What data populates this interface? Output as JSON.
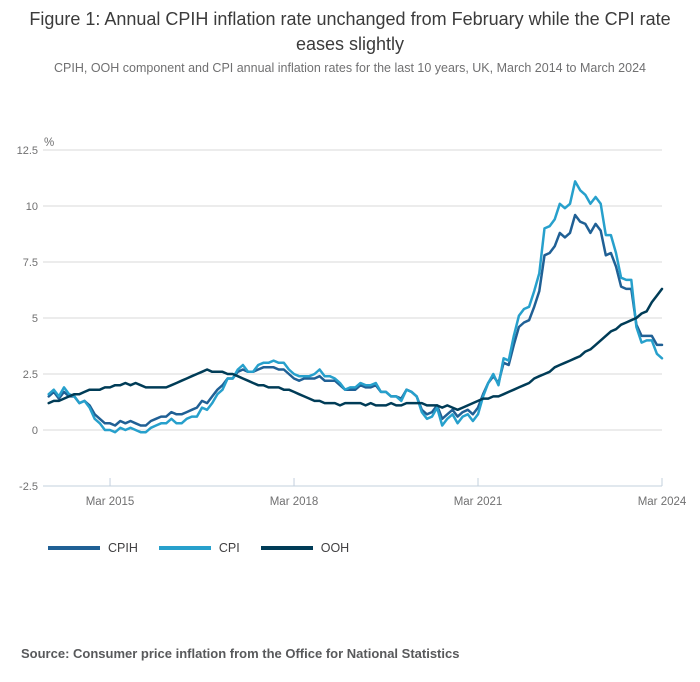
{
  "figure": {
    "title": "Figure 1: Annual CPIH inflation rate unchanged from February while the CPI rate eases slightly",
    "subtitle": "CPIH, OOH component and CPI annual inflation rates for the last 10 years, UK, March 2014 to March 2024",
    "source": "Source: Consumer price inflation from the Office for National Statistics"
  },
  "chart_data": {
    "type": "line",
    "title": "Figure 1: Annual CPIH inflation rate unchanged from February while the CPI rate eases slightly",
    "subtitle": "CPIH, OOH component and CPI annual inflation rates for the last 10 years, UK, March 2014 to March 2024",
    "unit_label": "%",
    "x_start": "Mar 2014",
    "x_end": "Mar 2024",
    "x_frequency": "monthly",
    "ylim": [
      -2.5,
      12.5
    ],
    "y_ticks": [
      12.5,
      10,
      7.5,
      5,
      2.5,
      0,
      -2.5
    ],
    "x_ticks": [
      {
        "index": 12,
        "label": "Mar 2015"
      },
      {
        "index": 48,
        "label": "Mar 2018"
      },
      {
        "index": 84,
        "label": "Mar 2021"
      },
      {
        "index": 120,
        "label": "Mar 2024"
      }
    ],
    "grid_on": true,
    "grid_color": "#d9d9d9",
    "axis_color": "#c3d0de",
    "tick_label_color": "#707071",
    "legend_position": "bottom-left",
    "series": [
      {
        "name": "CPIH",
        "color": "#206095",
        "values": [
          1.5,
          1.7,
          1.4,
          1.7,
          1.5,
          1.5,
          1.2,
          1.3,
          1.1,
          0.7,
          0.5,
          0.3,
          0.3,
          0.2,
          0.4,
          0.3,
          0.4,
          0.3,
          0.2,
          0.2,
          0.4,
          0.5,
          0.6,
          0.6,
          0.8,
          0.7,
          0.7,
          0.8,
          0.9,
          1.0,
          1.3,
          1.2,
          1.5,
          1.8,
          2.0,
          2.3,
          2.3,
          2.6,
          2.7,
          2.6,
          2.6,
          2.7,
          2.8,
          2.8,
          2.8,
          2.7,
          2.7,
          2.5,
          2.3,
          2.2,
          2.3,
          2.3,
          2.3,
          2.4,
          2.2,
          2.2,
          2.2,
          2.0,
          1.8,
          1.8,
          1.8,
          2.0,
          1.9,
          1.9,
          2.0,
          1.7,
          1.7,
          1.5,
          1.5,
          1.4,
          1.8,
          1.7,
          1.5,
          0.9,
          0.7,
          0.8,
          1.1,
          0.5,
          0.7,
          0.9,
          0.6,
          0.8,
          0.9,
          0.7,
          1.0,
          1.6,
          2.1,
          2.4,
          2.1,
          3.0,
          2.9,
          3.8,
          4.6,
          4.8,
          4.9,
          5.5,
          6.2,
          7.8,
          7.9,
          8.2,
          8.8,
          8.6,
          8.8,
          9.6,
          9.3,
          9.2,
          8.8,
          9.2,
          8.9,
          7.8,
          7.9,
          7.3,
          6.4,
          6.3,
          6.3,
          4.7,
          4.2,
          4.2,
          4.2,
          3.8,
          3.8
        ]
      },
      {
        "name": "CPI",
        "color": "#27A0CC",
        "values": [
          1.6,
          1.8,
          1.5,
          1.9,
          1.6,
          1.5,
          1.2,
          1.3,
          1.0,
          0.5,
          0.3,
          0.0,
          0.0,
          -0.1,
          0.1,
          0.0,
          0.1,
          0.0,
          -0.1,
          -0.1,
          0.1,
          0.2,
          0.3,
          0.3,
          0.5,
          0.3,
          0.3,
          0.5,
          0.6,
          0.6,
          1.0,
          0.9,
          1.2,
          1.6,
          1.8,
          2.3,
          2.3,
          2.7,
          2.9,
          2.6,
          2.6,
          2.9,
          3.0,
          3.0,
          3.1,
          3.0,
          3.0,
          2.7,
          2.5,
          2.4,
          2.4,
          2.4,
          2.5,
          2.7,
          2.4,
          2.4,
          2.3,
          2.1,
          1.8,
          1.9,
          1.9,
          2.1,
          2.0,
          2.0,
          2.1,
          1.7,
          1.7,
          1.5,
          1.5,
          1.3,
          1.8,
          1.7,
          1.5,
          0.8,
          0.5,
          0.6,
          1.0,
          0.2,
          0.5,
          0.7,
          0.3,
          0.6,
          0.7,
          0.4,
          0.7,
          1.5,
          2.1,
          2.5,
          2.0,
          3.2,
          3.1,
          4.2,
          5.1,
          5.4,
          5.5,
          6.2,
          7.0,
          9.0,
          9.1,
          9.4,
          10.1,
          9.9,
          10.1,
          11.1,
          10.7,
          10.5,
          10.1,
          10.4,
          10.1,
          8.7,
          8.7,
          7.9,
          6.8,
          6.7,
          6.7,
          4.6,
          3.9,
          4.0,
          4.0,
          3.4,
          3.2
        ]
      },
      {
        "name": "OOH",
        "color": "#003C57",
        "values": [
          1.2,
          1.3,
          1.3,
          1.4,
          1.5,
          1.6,
          1.6,
          1.7,
          1.8,
          1.8,
          1.8,
          1.9,
          1.9,
          2.0,
          2.0,
          2.1,
          2.0,
          2.1,
          2.0,
          1.9,
          1.9,
          1.9,
          1.9,
          1.9,
          2.0,
          2.1,
          2.2,
          2.3,
          2.4,
          2.5,
          2.6,
          2.7,
          2.6,
          2.6,
          2.6,
          2.5,
          2.5,
          2.4,
          2.3,
          2.2,
          2.1,
          2.0,
          2.0,
          1.9,
          1.9,
          1.9,
          1.8,
          1.8,
          1.7,
          1.6,
          1.5,
          1.4,
          1.3,
          1.3,
          1.2,
          1.2,
          1.2,
          1.1,
          1.2,
          1.2,
          1.2,
          1.2,
          1.1,
          1.2,
          1.1,
          1.1,
          1.1,
          1.2,
          1.1,
          1.1,
          1.2,
          1.2,
          1.2,
          1.2,
          1.1,
          1.1,
          1.1,
          1.0,
          1.1,
          1.0,
          0.9,
          1.0,
          1.1,
          1.2,
          1.3,
          1.4,
          1.4,
          1.5,
          1.5,
          1.6,
          1.7,
          1.8,
          1.9,
          2.0,
          2.1,
          2.3,
          2.4,
          2.5,
          2.6,
          2.8,
          2.9,
          3.0,
          3.1,
          3.2,
          3.3,
          3.5,
          3.6,
          3.8,
          4.0,
          4.2,
          4.4,
          4.5,
          4.7,
          4.8,
          4.9,
          5.0,
          5.2,
          5.3,
          5.7,
          6.0,
          6.3
        ]
      }
    ]
  }
}
